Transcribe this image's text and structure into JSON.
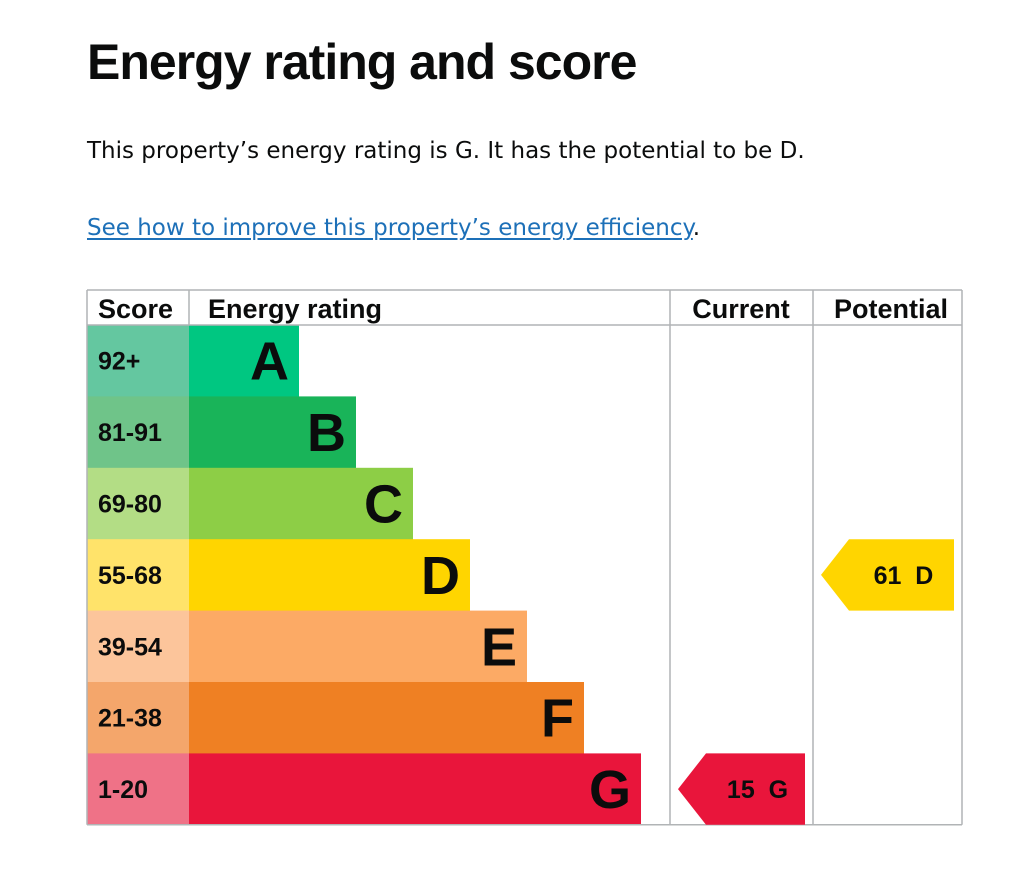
{
  "page": {
    "heading": "Energy rating and score",
    "summary": "This property’s energy rating is G. It has the potential to be D.",
    "link_text": "See how to improve this property’s energy efficiency",
    "link_suffix": "."
  },
  "chart_data": {
    "type": "bar",
    "columns": {
      "score": "Score",
      "rating": "Energy rating",
      "current": "Current",
      "potential": "Potential"
    },
    "bands": [
      {
        "letter": "A",
        "range": "92+",
        "color": "#00c781",
        "score_bg": "#64c7a0"
      },
      {
        "letter": "B",
        "range": "81-91",
        "color": "#19b459",
        "score_bg": "#6fc489"
      },
      {
        "letter": "C",
        "range": "69-80",
        "color": "#8dce46",
        "score_bg": "#b3dd85"
      },
      {
        "letter": "D",
        "range": "55-68",
        "color": "#ffd500",
        "score_bg": "#ffe36a"
      },
      {
        "letter": "E",
        "range": "39-54",
        "color": "#fcaa65",
        "score_bg": "#fcc59b"
      },
      {
        "letter": "F",
        "range": "21-38",
        "color": "#ef8023",
        "score_bg": "#f4a66b"
      },
      {
        "letter": "G",
        "range": "1-20",
        "color": "#e9153b",
        "score_bg": "#ef7287"
      }
    ],
    "current": {
      "score": 15,
      "letter": "G",
      "label": "15  G",
      "color": "#e9153b"
    },
    "potential": {
      "score": 61,
      "letter": "D",
      "label": "61  D",
      "color": "#ffd500"
    }
  }
}
